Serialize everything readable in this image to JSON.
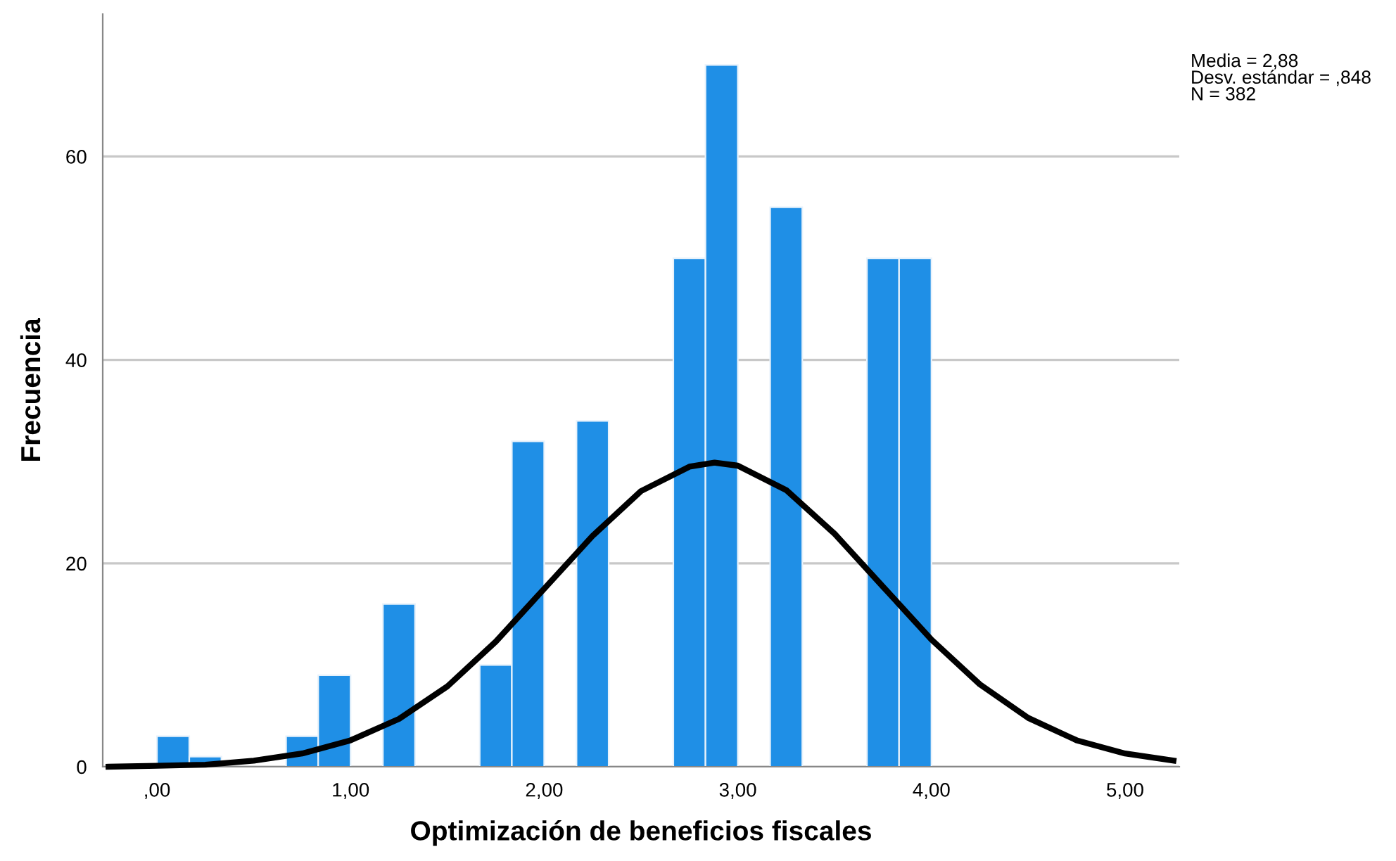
{
  "chart_data": {
    "type": "histogram",
    "xlabel": "Optimización de beneficios fiscales",
    "ylabel": "Frecuencia",
    "annotations": [
      "Media = 2,88\nDesv. estándar = ,848\nN = 382"
    ],
    "bins": [
      0,
      0.167,
      0.333,
      0.5,
      0.667,
      0.833,
      1,
      1.167,
      1.333,
      1.5,
      1.667,
      1.833,
      2,
      2.167,
      2.333,
      2.5,
      2.667,
      2.833,
      3,
      3.167,
      3.333,
      3.5,
      3.667,
      3.833,
      4
    ],
    "values": [
      3,
      1,
      0,
      0,
      3,
      9,
      0,
      16,
      0,
      0,
      10,
      32,
      0,
      34,
      0,
      0,
      50,
      69,
      0,
      55,
      0,
      0,
      50,
      50
    ],
    "color": "#1f8fe6",
    "series": [
      {
        "type": "line",
        "color": "#000000",
        "x": [
          -0.25,
          0,
          0.25,
          0.5,
          0.75,
          1,
          1.25,
          1.5,
          1.75,
          2,
          2.25,
          2.5,
          2.75,
          2.88,
          3,
          3.25,
          3.5,
          3.75,
          4,
          4.25,
          4.5,
          4.75,
          5,
          5.25
        ],
        "values": [
          0.0,
          0.1,
          0.2,
          0.6,
          1.3,
          2.6,
          4.7,
          7.9,
          12.3,
          17.5,
          22.7,
          27.1,
          29.5,
          29.9,
          29.6,
          27.2,
          22.9,
          17.7,
          12.5,
          8.1,
          4.8,
          2.6,
          1.3,
          0.6
        ]
      }
    ],
    "xlim": [
      -0.28,
      5.28
    ],
    "ylim": [
      0,
      74
    ],
    "xticks": [
      {
        "value": 0,
        "label": ",00"
      },
      {
        "value": 1,
        "label": "1,00"
      },
      {
        "value": 2,
        "label": "2,00"
      },
      {
        "value": 3,
        "label": "3,00"
      },
      {
        "value": 4,
        "label": "4,00"
      },
      {
        "value": 5,
        "label": "5,00"
      }
    ],
    "yticks": [
      0,
      20,
      40,
      60
    ],
    "grid": "y"
  }
}
